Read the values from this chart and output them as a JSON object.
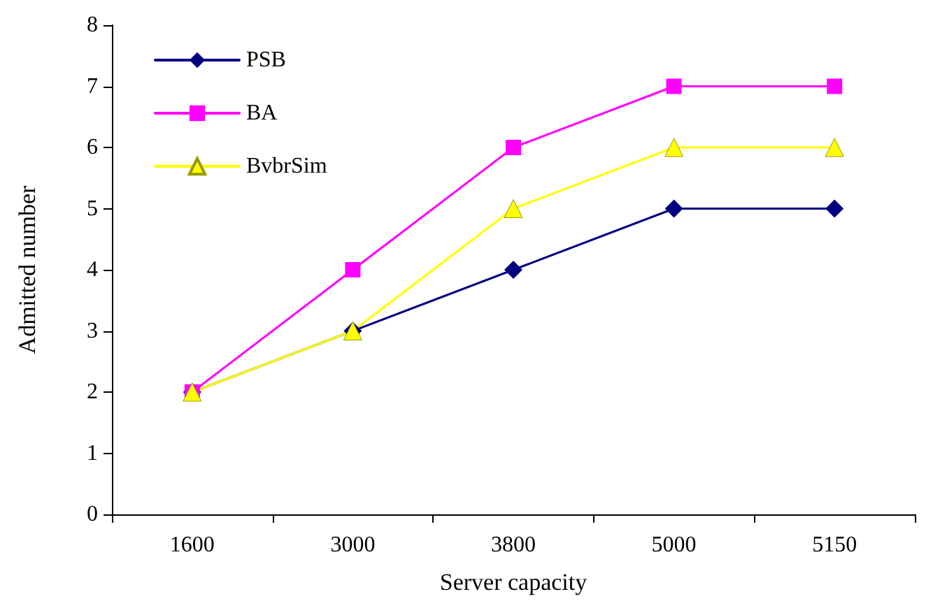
{
  "chart_data": {
    "type": "line",
    "xlabel": "Server capacity",
    "ylabel": "Admitted number",
    "categories": [
      "1600",
      "3000",
      "3800",
      "5000",
      "5150"
    ],
    "series": [
      {
        "name": "PSB",
        "color": "#000080",
        "values": [
          2,
          3,
          4,
          5,
          5
        ],
        "marker": "diamond"
      },
      {
        "name": "BA",
        "color": "#ff00ff",
        "values": [
          2,
          4,
          6,
          7,
          7
        ],
        "marker": "square"
      },
      {
        "name": "BvbrSim",
        "color": "#ffff00",
        "values": [
          2,
          3,
          5,
          6,
          6
        ],
        "marker": "triangle"
      }
    ],
    "ylim": [
      0,
      8
    ],
    "yticks": [
      0,
      1,
      2,
      3,
      4,
      5,
      6,
      7,
      8
    ],
    "grid": false,
    "legend": "top left"
  }
}
